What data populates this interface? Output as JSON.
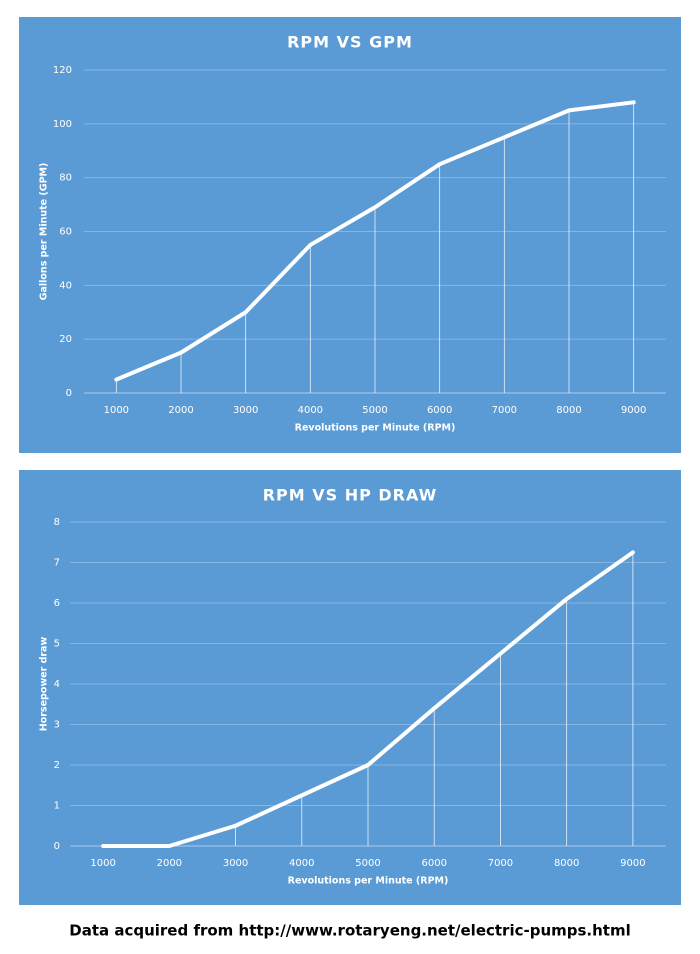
{
  "chart_data": [
    {
      "type": "line",
      "title": "RPM VS GPM",
      "x_label": "Revolutions per Minute (RPM)",
      "y_label": "Gallons per Minute (GPM)",
      "categories": [
        "1000",
        "2000",
        "3000",
        "4000",
        "5000",
        "6000",
        "7000",
        "8000",
        "9000"
      ],
      "values": [
        5,
        15,
        30,
        55,
        69,
        85,
        95,
        105,
        108
      ],
      "color": "#ffffff",
      "ylim": [
        0,
        120
      ],
      "yticks": [
        0,
        20,
        40,
        60,
        80,
        100,
        120
      ],
      "grid": true,
      "drop_lines": true
    },
    {
      "type": "line",
      "title": "RPM VS HP DRAW",
      "x_label": "Revolutions per Minute (RPM)",
      "y_label": "Horsepower draw",
      "categories": [
        "1000",
        "2000",
        "3000",
        "4000",
        "5000",
        "6000",
        "7000",
        "8000",
        "9000"
      ],
      "values": [
        0,
        0,
        0.5,
        1.25,
        2,
        3.4,
        4.75,
        6.1,
        7.25
      ],
      "color": "#ffffff",
      "ylim": [
        0,
        8
      ],
      "yticks": [
        0,
        1,
        2,
        3,
        4,
        5,
        6,
        7,
        8
      ],
      "grid": true,
      "drop_lines": true
    }
  ],
  "footer": "Data  acquired from http://www.rotaryeng.net/electric-pumps.html"
}
